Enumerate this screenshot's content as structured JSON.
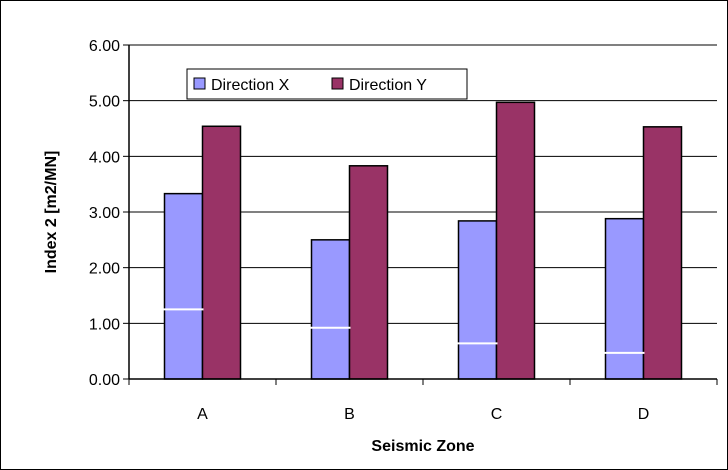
{
  "chart_data": {
    "type": "bar",
    "categories": [
      "A",
      "B",
      "C",
      "D"
    ],
    "series": [
      {
        "name": "Direction X",
        "color": "#9999ff",
        "values": [
          3.33,
          2.5,
          2.84,
          2.88
        ]
      },
      {
        "name": "Direction Y",
        "color": "#993366",
        "values": [
          4.54,
          3.83,
          4.97,
          4.53
        ]
      }
    ],
    "reference_lines": {
      "color": "#ffffff",
      "series": "Direction X",
      "values": [
        1.25,
        0.92,
        0.64,
        0.47
      ]
    },
    "title": "",
    "xlabel": "Seismic Zone",
    "ylabel": "Index 2 [m2/MN]",
    "ylim": [
      0,
      6
    ],
    "yticks": [
      "0.00",
      "1.00",
      "2.00",
      "3.00",
      "4.00",
      "5.00",
      "6.00"
    ],
    "grid": "horizontal major",
    "legend_position": "top-left"
  }
}
